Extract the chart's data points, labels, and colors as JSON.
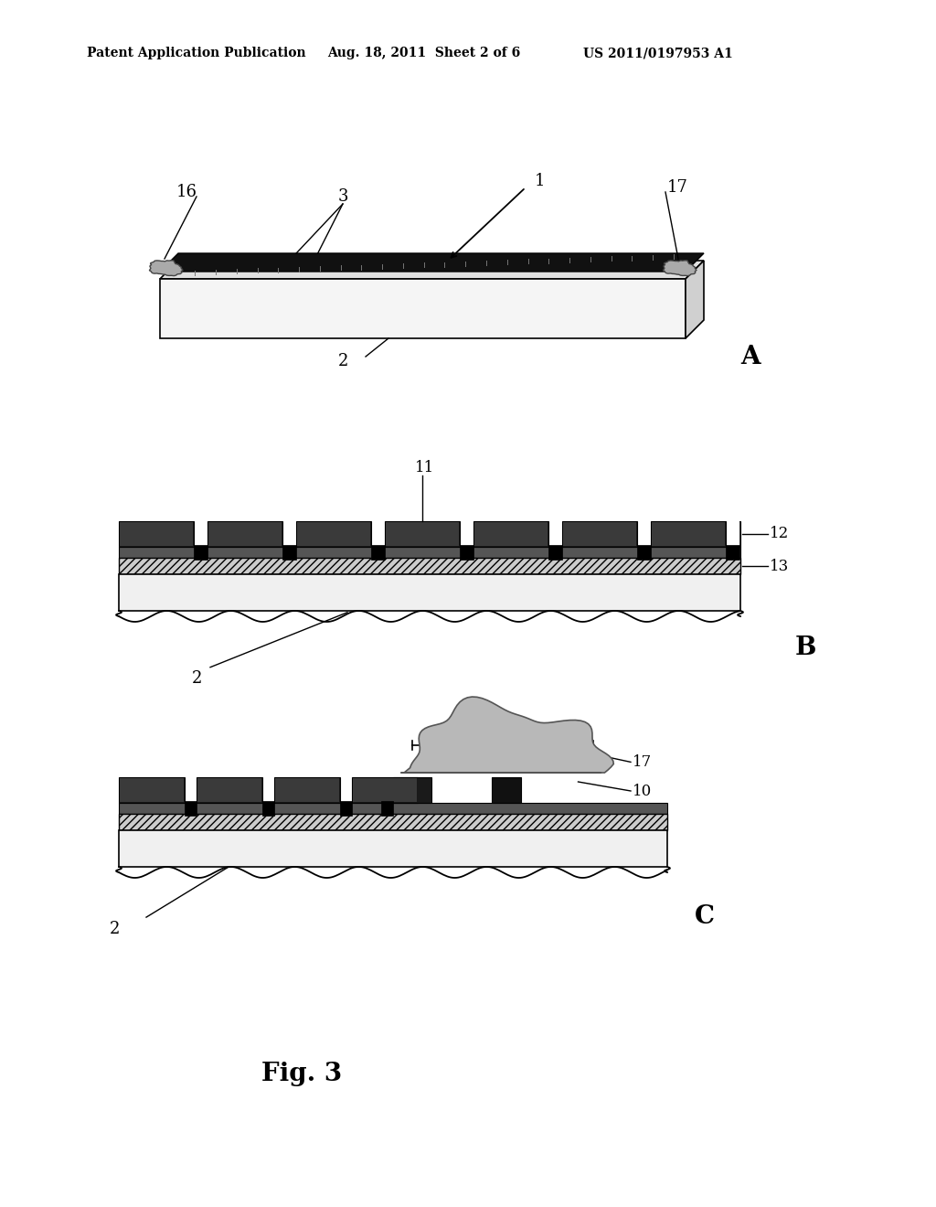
{
  "bg_color": "#ffffff",
  "header_left": "Patent Application Publication",
  "header_mid": "Aug. 18, 2011  Sheet 2 of 6",
  "header_right": "US 2011/0197953 A1",
  "fig_label": "Fig. 3"
}
